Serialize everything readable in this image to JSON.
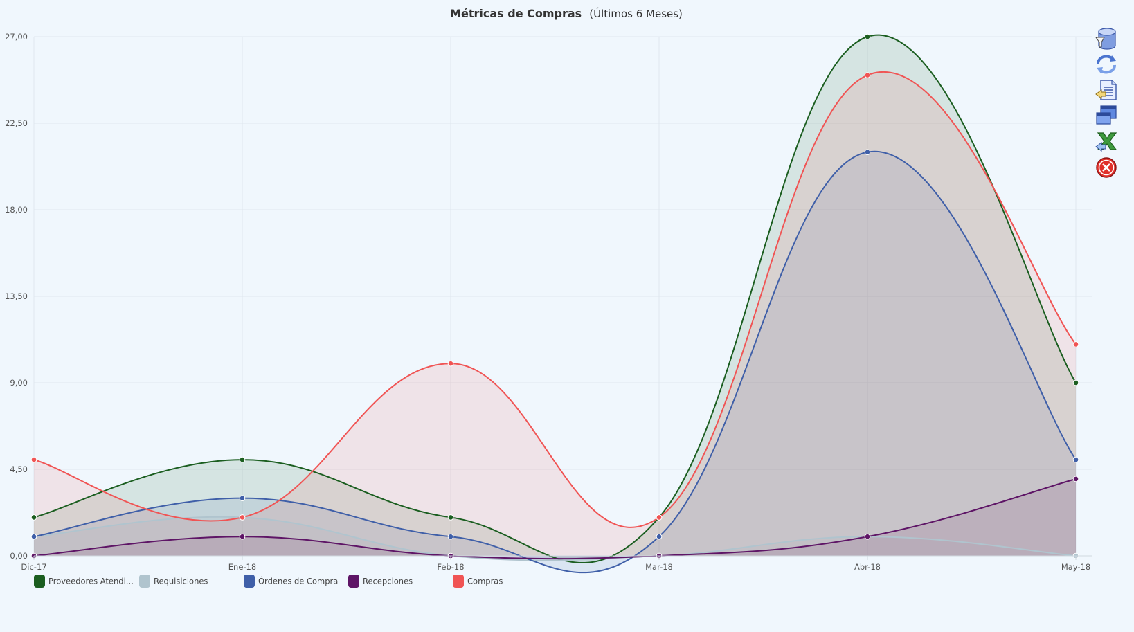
{
  "chart_data": {
    "type": "area",
    "title": "Métricas de Compras",
    "subtitle": "(Últimos 6 Meses)",
    "categories": [
      "Dic-17",
      "Ene-18",
      "Feb-18",
      "Mar-18",
      "Abr-18",
      "May-18"
    ],
    "y_ticks": [
      "0,00",
      "4,50",
      "9,00",
      "13,50",
      "18,00",
      "22,50",
      "27,00"
    ],
    "ylim": [
      0,
      27
    ],
    "grid": true,
    "smooth": true,
    "legend_position": "bottom-left",
    "series": [
      {
        "name": "Proveedores Atendi...",
        "color": "#1b5e20",
        "values": [
          2,
          5,
          2,
          2,
          27,
          9
        ]
      },
      {
        "name": "Requisiciones",
        "color": "#b0c4ce",
        "values": [
          1,
          2,
          0,
          0,
          1,
          0
        ]
      },
      {
        "name": "Órdenes de Compra",
        "color": "#3f5fa8",
        "values": [
          1,
          3,
          1,
          1,
          21,
          5
        ]
      },
      {
        "name": "Recepciones",
        "color": "#5e1566",
        "values": [
          0,
          1,
          0,
          0,
          1,
          4
        ]
      },
      {
        "name": "Compras",
        "color": "#f05454",
        "values": [
          5,
          2,
          10,
          2,
          25,
          11
        ]
      }
    ]
  },
  "toolbar": {
    "buttons": [
      {
        "icon": "database-filter-icon"
      },
      {
        "icon": "refresh-icon"
      },
      {
        "icon": "report-document-icon"
      },
      {
        "icon": "windows-icon"
      },
      {
        "icon": "excel-export-icon"
      },
      {
        "icon": "close-icon"
      }
    ]
  }
}
